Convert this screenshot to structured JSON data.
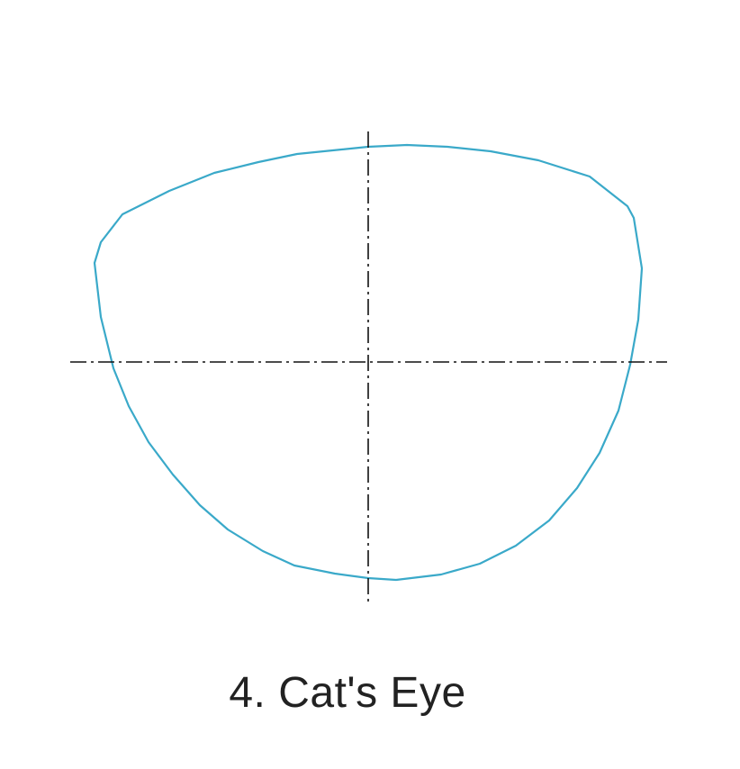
{
  "diagram": {
    "caption": "4. Cat's Eye",
    "shape_name": "cat-eye",
    "colors": {
      "outline": "#3aa9c9",
      "axes": "#111111",
      "caption_text": "#222222",
      "background": "#ffffff"
    }
  }
}
